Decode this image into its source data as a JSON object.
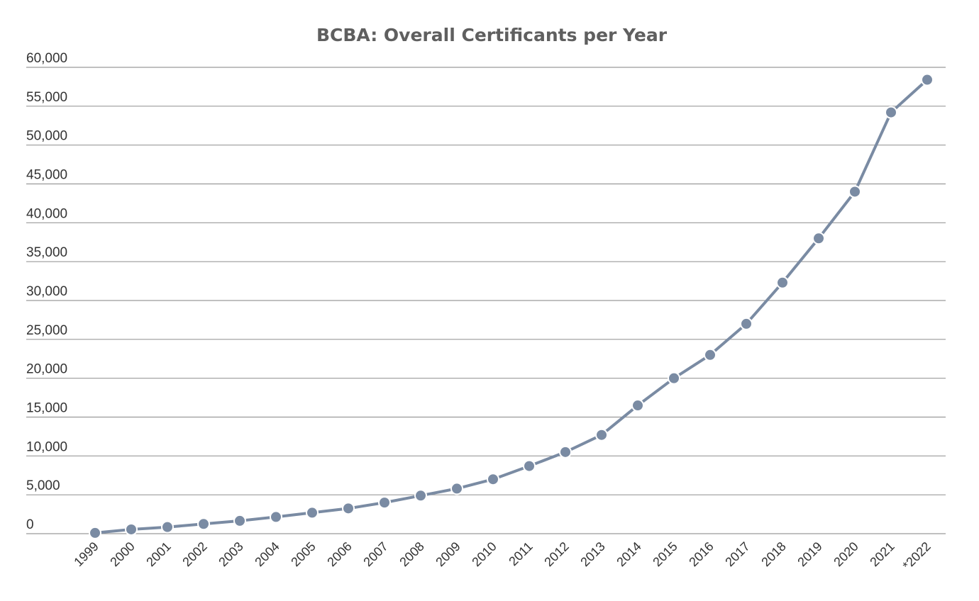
{
  "chart_data": {
    "type": "line",
    "title": "BCBA: Overall Certificants per Year",
    "xlabel": "",
    "ylabel": "",
    "categories": [
      "1999",
      "2000",
      "2001",
      "2002",
      "2003",
      "2004",
      "2005",
      "2006",
      "2007",
      "2008",
      "2009",
      "2010",
      "2011",
      "2012",
      "2013",
      "2014",
      "2015",
      "2016",
      "2017",
      "2018",
      "2019",
      "2020",
      "2021",
      "*2022"
    ],
    "series": [
      {
        "values": [
          100,
          550,
          850,
          1250,
          1650,
          2150,
          2700,
          3250,
          4000,
          4900,
          5800,
          7000,
          8700,
          10500,
          12700,
          16500,
          20000,
          23000,
          27000,
          32300,
          38000,
          44000,
          54200,
          58400
        ]
      }
    ],
    "ylim": [
      0,
      60000
    ],
    "yticks": [
      0,
      5000,
      10000,
      15000,
      20000,
      25000,
      30000,
      35000,
      40000,
      45000,
      50000,
      55000,
      60000
    ],
    "ytick_labels": [
      "0",
      "5,000",
      "10,000",
      "15,000",
      "20,000",
      "25,000",
      "30,000",
      "35,000",
      "40,000",
      "45,000",
      "50,000",
      "55,000",
      "60,000"
    ],
    "grid": true,
    "legend": "none",
    "colors": {
      "series": "#7a8ba3",
      "grid": "#9a9a9a",
      "title": "#5f5f5f",
      "text": "#333333"
    }
  }
}
